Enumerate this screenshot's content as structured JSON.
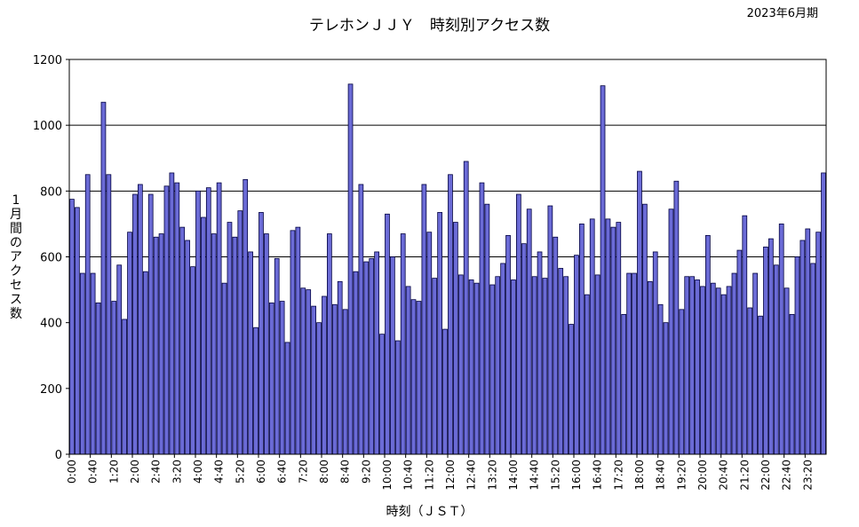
{
  "chart_data": {
    "type": "bar",
    "title": "テレホンＪＪＹ　時刻別アクセス数",
    "period": "2023年6月期",
    "xlabel": "時刻（ＪＳＴ）",
    "ylabel": "1月間のアクセス数",
    "ylim": [
      0,
      1200
    ],
    "yticks": [
      "0",
      "200",
      "400",
      "600",
      "800",
      "1000",
      "1200"
    ],
    "grid": "horizontal at 600, 800, 1000",
    "bar_color": "#6b6bd6",
    "bar_edge": "#000040",
    "bin_minutes": 10,
    "xtick_labels": [
      "0:00",
      "0:40",
      "1:20",
      "2:00",
      "2:40",
      "3:20",
      "4:00",
      "4:40",
      "5:20",
      "6:00",
      "6:40",
      "7:20",
      "8:00",
      "8:40",
      "9:20",
      "10:00",
      "10:40",
      "11:20",
      "12:00",
      "12:40",
      "13:20",
      "14:00",
      "14:40",
      "15:20",
      "16:00",
      "16:40",
      "17:20",
      "18:00",
      "18:40",
      "19:20",
      "20:00",
      "20:40",
      "21:20",
      "22:00",
      "22:40",
      "23:20"
    ],
    "values": [
      775,
      750,
      550,
      850,
      550,
      460,
      1070,
      850,
      465,
      575,
      410,
      675,
      790,
      820,
      555,
      790,
      660,
      670,
      815,
      855,
      825,
      690,
      650,
      570,
      800,
      720,
      810,
      670,
      825,
      520,
      705,
      660,
      740,
      835,
      615,
      385,
      735,
      670,
      460,
      595,
      465,
      340,
      680,
      690,
      505,
      500,
      450,
      400,
      480,
      670,
      455,
      525,
      440,
      1125,
      555,
      820,
      585,
      595,
      615,
      365,
      730,
      600,
      345,
      670,
      510,
      470,
      465,
      820,
      675,
      535,
      735,
      380,
      850,
      705,
      545,
      890,
      530,
      520,
      825,
      760,
      515,
      540,
      580,
      665,
      530,
      790,
      640,
      745,
      540,
      615,
      535,
      755,
      660,
      565,
      540,
      395,
      605,
      700,
      485,
      715,
      545,
      1120,
      715,
      690,
      705,
      425,
      550,
      550,
      860,
      760,
      525,
      615,
      455,
      400,
      745,
      830,
      440,
      540,
      540,
      530,
      510,
      665,
      520,
      505,
      485,
      510,
      550,
      620,
      725,
      445,
      550,
      420,
      630,
      655,
      575,
      700,
      505,
      425,
      600,
      650,
      685,
      580,
      675,
      855
    ]
  }
}
